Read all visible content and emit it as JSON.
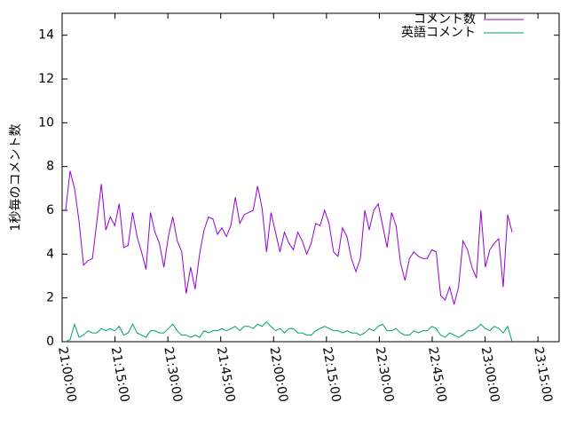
{
  "chart_data": {
    "type": "line",
    "y_label": "1秒毎のコメント数",
    "x": [
      75660,
      75736,
      75812,
      75888,
      75964,
      76040,
      76116,
      76192,
      76268,
      76344,
      76420,
      76496,
      76572,
      76648,
      76724,
      76800,
      76876,
      76952,
      77028,
      77104,
      77180,
      77256,
      77332,
      77408,
      77484,
      77560,
      77636,
      77712,
      77788,
      77864,
      77940,
      78016,
      78092,
      78168,
      78244,
      78320,
      78396,
      78472,
      78548,
      78624,
      78700,
      78776,
      78852,
      78928,
      79004,
      79080,
      79156,
      79232,
      79308,
      79384,
      79460,
      79536,
      79612,
      79688,
      79764,
      79840,
      79916,
      79992,
      80068,
      80144,
      80220,
      80296,
      80372,
      80448,
      80524,
      80600,
      80676,
      80752,
      80828,
      80904,
      80980,
      81056,
      81132,
      81208,
      81284,
      81360,
      81436,
      81512,
      81588,
      81664,
      81740,
      81816,
      81892,
      81968,
      82044,
      82120,
      82196,
      82272,
      82348,
      82424,
      82500,
      82576,
      82652,
      82728,
      82804,
      82880,
      82956,
      83032,
      83108,
      83184,
      83260
    ],
    "series": [
      {
        "name": "コメント数",
        "color": "#9400d3",
        "values": [
          6.0,
          7.8,
          7.0,
          5.5,
          3.5,
          3.7,
          3.8,
          5.5,
          7.2,
          5.1,
          5.7,
          5.3,
          6.3,
          4.3,
          4.4,
          5.9,
          4.8,
          4.1,
          3.3,
          5.9,
          5.0,
          4.5,
          3.4,
          4.8,
          5.7,
          4.6,
          4.1,
          2.2,
          3.4,
          2.4,
          4.0,
          5.1,
          5.7,
          5.6,
          4.9,
          5.2,
          4.8,
          5.3,
          6.6,
          5.4,
          5.8,
          5.9,
          6.0,
          7.1,
          6.1,
          4.1,
          5.9,
          5.0,
          4.1,
          5.0,
          4.5,
          4.2,
          5.0,
          4.6,
          4.0,
          4.5,
          5.4,
          5.3,
          6.0,
          5.4,
          4.1,
          3.9,
          5.2,
          4.8,
          3.8,
          3.2,
          3.8,
          6.0,
          5.1,
          6.0,
          6.3,
          5.3,
          4.3,
          5.9,
          5.3,
          3.6,
          2.8,
          3.8,
          4.1,
          3.9,
          3.8,
          3.8,
          4.2,
          4.1,
          2.1,
          1.9,
          2.5,
          1.7,
          2.5,
          4.6,
          4.2,
          3.4,
          2.9,
          6.0,
          3.4,
          4.2,
          4.5,
          4.7,
          2.5,
          5.8,
          5.0
        ]
      },
      {
        "name": "英語コメント",
        "color": "#009e73",
        "values": [
          0,
          0.1,
          0.8,
          0.2,
          0.3,
          0.5,
          0.4,
          0.4,
          0.6,
          0.5,
          0.6,
          0.5,
          0.7,
          0.3,
          0.4,
          0.8,
          0.4,
          0.3,
          0.2,
          0.5,
          0.5,
          0.4,
          0.4,
          0.6,
          0.8,
          0.5,
          0.3,
          0.3,
          0.2,
          0.3,
          0.2,
          0.5,
          0.4,
          0.5,
          0.5,
          0.6,
          0.5,
          0.6,
          0.7,
          0.5,
          0.7,
          0.7,
          0.6,
          0.8,
          0.7,
          0.9,
          0.7,
          0.5,
          0.6,
          0.4,
          0.6,
          0.6,
          0.4,
          0.4,
          0.3,
          0.3,
          0.5,
          0.6,
          0.7,
          0.6,
          0.5,
          0.5,
          0.4,
          0.5,
          0.4,
          0.4,
          0.3,
          0.4,
          0.6,
          0.5,
          0.7,
          0.8,
          0.5,
          0.5,
          0.6,
          0.4,
          0.3,
          0.3,
          0.5,
          0.4,
          0.5,
          0.5,
          0.7,
          0.6,
          0.3,
          0.2,
          0.4,
          0.3,
          0.2,
          0.3,
          0.5,
          0.5,
          0.6,
          0.8,
          0.6,
          0.5,
          0.7,
          0.6,
          0.4,
          0.7,
          0.0
        ]
      }
    ],
    "xlim": [
      75600,
      84060
    ],
    "xticks": [
      {
        "value": 75600,
        "label": "21:00:00"
      },
      {
        "value": 76500,
        "label": "21:15:00"
      },
      {
        "value": 77400,
        "label": "21:30:00"
      },
      {
        "value": 78300,
        "label": "21:45:00"
      },
      {
        "value": 79200,
        "label": "22:00:00"
      },
      {
        "value": 80100,
        "label": "22:15:00"
      },
      {
        "value": 81000,
        "label": "22:30:00"
      },
      {
        "value": 81900,
        "label": "22:45:00"
      },
      {
        "value": 82800,
        "label": "23:00:00"
      },
      {
        "value": 83700,
        "label": "23:15:00"
      }
    ],
    "ylim": [
      0,
      15
    ],
    "yticks": [
      0,
      2,
      4,
      6,
      8,
      10,
      12,
      14
    ],
    "legend": "top-right"
  }
}
